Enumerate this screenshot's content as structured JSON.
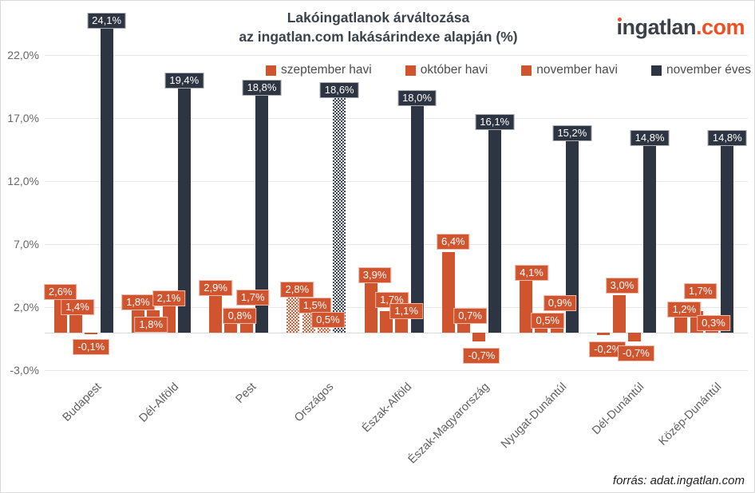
{
  "header": {
    "title_line1": "Lakóingatlanok árváltozása",
    "title_line2": "az ingatlan.com lakásárindexe alapján (%)"
  },
  "logo": {
    "brand": "ingatlan",
    "suffix": ".com",
    "brand_color": "#3c4147",
    "suffix_color": "#f04e23"
  },
  "footer": {
    "source": "forrás: adat.ingatlan.com"
  },
  "colors": {
    "monthly_orange": "#d0552f",
    "yearly_navy": "#2d3442",
    "gridline": "#e7e7e7"
  },
  "chart_data": {
    "type": "bar",
    "title": "Lakóingatlanok árváltozása az ingatlan.com lakásárindexe alapján (%)",
    "grid": true,
    "legend_position": "top",
    "y_axis": {
      "ticks": [
        {
          "value": 22,
          "label": "22,0%"
        },
        {
          "value": 17,
          "label": "17,0%"
        },
        {
          "value": 12,
          "label": "12,0%"
        },
        {
          "value": 7,
          "label": "7,0%"
        },
        {
          "value": 2,
          "label": "2,0%"
        },
        {
          "value": -3,
          "label": "-3,0%"
        }
      ],
      "min": -3,
      "max": 24.5
    },
    "categories": [
      "Budapest",
      "Dél-Alföld",
      "Pest",
      "Országos",
      "Észak-Alföld",
      "Észak-Magyarország",
      "Nyugat-Dunántúl",
      "Dél-Dunántúl",
      "Közép-Dunántúl"
    ],
    "patterned_category_index": 3,
    "series": [
      {
        "name": "szeptember havi",
        "color": "#d0552f",
        "values": [
          2.6,
          1.8,
          2.9,
          2.8,
          3.9,
          6.4,
          4.1,
          -0.2,
          1.2
        ],
        "labels": [
          "2,6%",
          "1,8%",
          "2,9%",
          "2,8%",
          "3,9%",
          "6,4%",
          "4,1%",
          "-0,2%",
          "1,2%"
        ]
      },
      {
        "name": "október havi",
        "color": "#d0552f",
        "values": [
          1.4,
          1.8,
          0.8,
          1.5,
          1.7,
          0.7,
          0.5,
          3.0,
          1.7
        ],
        "labels": [
          "1,4%",
          "1,8%",
          "0,8%",
          "1,5%",
          "1,7%",
          "0,7%",
          "0,5%",
          "3,0%",
          "1,7%"
        ]
      },
      {
        "name": "november havi",
        "color": "#d0552f",
        "values": [
          -0.1,
          2.1,
          1.7,
          0.5,
          1.1,
          -0.7,
          0.9,
          -0.7,
          0.3
        ],
        "labels": [
          "-0,1%",
          "2,1%",
          "1,7%",
          "0,5%",
          "1,1%",
          "-0,7%",
          "0,9%",
          "-0,7%",
          "0,3%"
        ]
      },
      {
        "name": "november éves",
        "color": "#2d3442",
        "values": [
          24.1,
          19.4,
          18.8,
          18.6,
          18.0,
          16.1,
          15.2,
          14.8,
          14.8
        ],
        "labels": [
          "24,1%",
          "19,4%",
          "18,8%",
          "18,6%",
          "18,0%",
          "16,1%",
          "15,2%",
          "14,8%",
          "14,8%"
        ]
      }
    ],
    "label_offsets": [
      [
        [
          0,
          0
        ],
        [
          2,
          0
        ],
        [
          0,
          2
        ],
        [
          0,
          0
        ]
      ],
      [
        [
          0,
          0
        ],
        [
          -3,
          28
        ],
        [
          0,
          0
        ],
        [
          0,
          0
        ]
      ],
      [
        [
          0,
          0
        ],
        [
          11,
          2
        ],
        [
          8,
          -7
        ],
        [
          0,
          0
        ]
      ],
      [
        [
          5,
          0
        ],
        [
          8,
          0
        ],
        [
          5,
          2
        ],
        [
          0,
          0
        ]
      ],
      [
        [
          5,
          0
        ],
        [
          7,
          -4
        ],
        [
          6,
          0
        ],
        [
          0,
          0
        ]
      ],
      [
        [
          6,
          -3
        ],
        [
          8,
          0
        ],
        [
          3,
          4
        ],
        [
          0,
          0
        ]
      ],
      [
        [
          7,
          0
        ],
        [
          8,
          3
        ],
        [
          4,
          -13
        ],
        [
          0,
          0
        ]
      ],
      [
        [
          5,
          4
        ],
        [
          4,
          -2
        ],
        [
          2,
          1
        ],
        [
          0,
          0
        ]
      ],
      [
        [
          4,
          0
        ],
        [
          5,
          -15
        ],
        [
          2,
          3
        ],
        [
          0,
          0
        ]
      ]
    ]
  }
}
